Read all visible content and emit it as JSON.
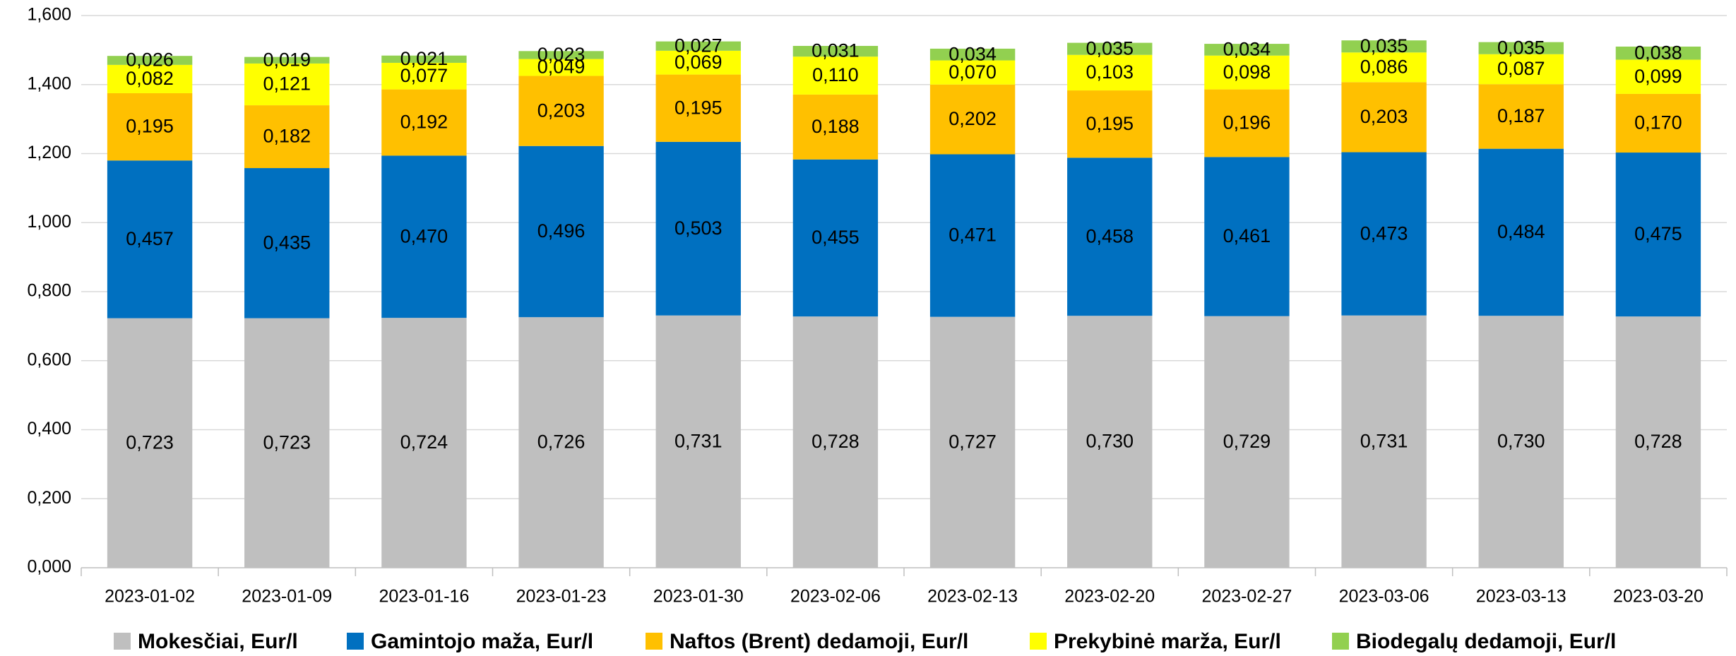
{
  "chart_data": {
    "type": "stacked_bar",
    "categories": [
      "2023-01-02",
      "2023-01-09",
      "2023-01-16",
      "2023-01-23",
      "2023-01-30",
      "2023-02-06",
      "2023-02-13",
      "2023-02-20",
      "2023-02-27",
      "2023-03-06",
      "2023-03-13",
      "2023-03-20"
    ],
    "series": [
      {
        "name": "Mokesčiai, Eur/l",
        "color": "#bfbfbf",
        "values": [
          0.723,
          0.723,
          0.724,
          0.726,
          0.731,
          0.728,
          0.727,
          0.73,
          0.729,
          0.731,
          0.73,
          0.728
        ],
        "value_labels": [
          "0,723",
          "0,723",
          "0,724",
          "0,726",
          "0,731",
          "0,728",
          "0,727",
          "0,730",
          "0,729",
          "0,731",
          "0,730",
          "0,728"
        ]
      },
      {
        "name": "Gamintojo maža, Eur/l",
        "color": "#0070c0",
        "values": [
          0.457,
          0.435,
          0.47,
          0.496,
          0.503,
          0.455,
          0.471,
          0.458,
          0.461,
          0.473,
          0.484,
          0.475
        ],
        "value_labels": [
          "0,457",
          "0,435",
          "0,470",
          "0,496",
          "0,503",
          "0,455",
          "0,471",
          "0,458",
          "0,461",
          "0,473",
          "0,484",
          "0,475"
        ]
      },
      {
        "name": "Naftos (Brent) dedamoji, Eur/l",
        "color": "#ffc000",
        "values": [
          0.195,
          0.182,
          0.192,
          0.203,
          0.195,
          0.188,
          0.202,
          0.195,
          0.196,
          0.203,
          0.187,
          0.17
        ],
        "value_labels": [
          "0,195",
          "0,182",
          "0,192",
          "0,203",
          "0,195",
          "0,188",
          "0,202",
          "0,195",
          "0,196",
          "0,203",
          "0,187",
          "0,170"
        ]
      },
      {
        "name": "Prekybinė marža, Eur/l",
        "color": "#ffff00",
        "values": [
          0.082,
          0.121,
          0.077,
          0.049,
          0.069,
          0.11,
          0.07,
          0.103,
          0.098,
          0.086,
          0.087,
          0.099
        ],
        "value_labels": [
          "0,082",
          "0,121",
          "0,077",
          "0,049",
          "0,069",
          "0,110",
          "0,070",
          "0,103",
          "0,098",
          "0,086",
          "0,087",
          "0,099"
        ]
      },
      {
        "name": "Biodegalų dedamoji, Eur/l",
        "color": "#92d050",
        "values": [
          0.026,
          0.019,
          0.021,
          0.023,
          0.027,
          0.031,
          0.034,
          0.035,
          0.034,
          0.035,
          0.035,
          0.038
        ],
        "value_labels": [
          "0,026",
          "0,019",
          "0,021",
          "0,023",
          "0,027",
          "0,031",
          "0,034",
          "0,035",
          "0,034",
          "0,035",
          "0,035",
          "0,038"
        ]
      }
    ],
    "ylim": [
      0,
      1.6
    ],
    "yticks": [
      {
        "value": 0,
        "label": "0,000"
      },
      {
        "value": 0.2,
        "label": "0,200"
      },
      {
        "value": 0.4,
        "label": "0,400"
      },
      {
        "value": 0.6,
        "label": "0,600"
      },
      {
        "value": 0.8,
        "label": "0,800"
      },
      {
        "value": 1.0,
        "label": "1,000"
      },
      {
        "value": 1.2,
        "label": "1,200"
      },
      {
        "value": 1.4,
        "label": "1,400"
      },
      {
        "value": 1.6,
        "label": "1,600"
      }
    ],
    "grid": true,
    "legend": "bottom"
  }
}
